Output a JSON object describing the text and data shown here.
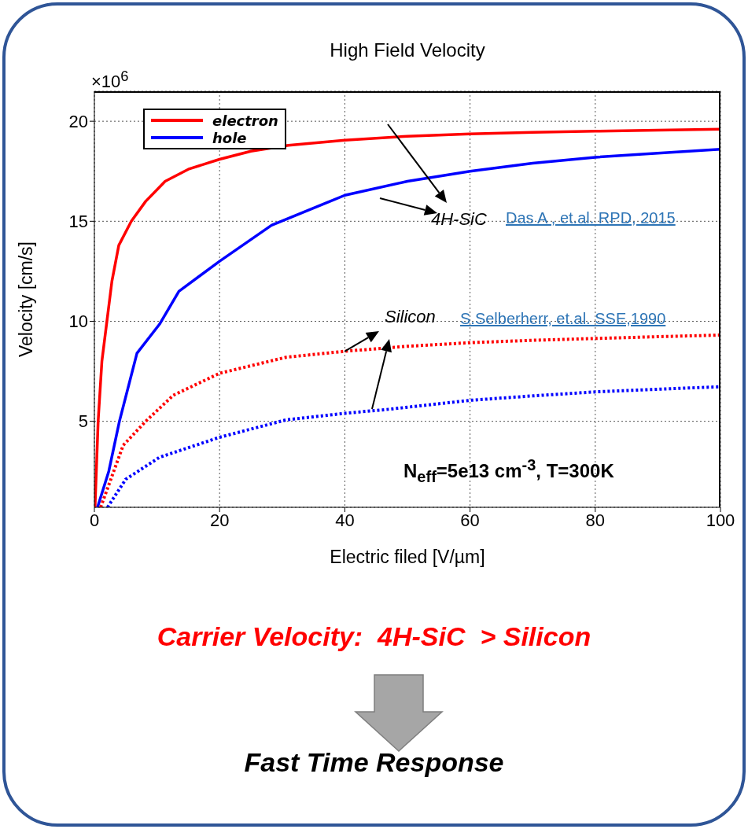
{
  "chart_data": {
    "type": "line",
    "title": "High Field Velocity",
    "xlabel": "Electric filed [V/µm]",
    "ylabel": "Velocity [cm/s]",
    "xlim": [
      0,
      100
    ],
    "xticks": [
      0,
      20,
      40,
      60,
      80,
      100
    ],
    "ylim": [
      0.7,
      21.5
    ],
    "yticks": [
      5,
      10,
      15,
      20
    ],
    "grid": true,
    "legend": "top left",
    "marker": "none",
    "series": [
      {
        "name": "electron",
        "color": "#ff0000",
        "line_style": "solid",
        "x": [
          0.1,
          0.6,
          1.2,
          2,
          2.8,
          3.9,
          5.9,
          8.2,
          11.3,
          15,
          20,
          25,
          31,
          40,
          50,
          60,
          70,
          80,
          90,
          100
        ],
        "values": [
          0.7,
          5,
          8,
          10,
          12,
          13.8,
          15,
          16,
          17,
          17.6,
          18.1,
          18.5,
          18.8,
          19.05,
          19.25,
          19.37,
          19.45,
          19.5,
          19.55,
          19.6
        ]
      },
      {
        "name": "hole",
        "color": "#0000ff",
        "line_style": "solid",
        "x": [
          0.5,
          2.3,
          4,
          6.8,
          10.4,
          13.5,
          20,
          28.3,
          40,
          50,
          60,
          70,
          80,
          90,
          100
        ],
        "values": [
          0.7,
          2.5,
          5,
          8.4,
          9.85,
          11.5,
          13,
          14.8,
          16.3,
          17,
          17.5,
          17.9,
          18.2,
          18.4,
          18.6
        ]
      },
      {
        "color": "#ff0000",
        "line_style": "dotted",
        "x": [
          1,
          4.6,
          8.2,
          12.6,
          20,
          30.6,
          40,
          50,
          60,
          70,
          80,
          90,
          100
        ],
        "values": [
          0.7,
          3.8,
          5,
          6.3,
          7.4,
          8.2,
          8.5,
          8.75,
          8.93,
          9.05,
          9.14,
          9.23,
          9.31
        ]
      },
      {
        "color": "#0000ff",
        "line_style": "dotted",
        "x": [
          2.1,
          5,
          10.4,
          20,
          30.6,
          40,
          47,
          60,
          70,
          80,
          90,
          100
        ],
        "values": [
          0.7,
          2.1,
          3.2,
          4.2,
          5.07,
          5.4,
          5.6,
          6.05,
          6.27,
          6.47,
          6.6,
          6.73
        ]
      }
    ],
    "annotations": [
      "×10$^{6}$",
      "4H-SiC",
      "Das A , et.al. RPD, 2015",
      {
        "text": "Silicon",
        "x": 40,
        "y": 8.5
      },
      "S.Selberherr, et.al. SSE,1990",
      "N$_{eff}$=5e13 cm$^{-3}$, T=300K",
      "Carrier Velocity:  4H-SiC  > Silicon",
      "Fast Time Response"
    ]
  }
}
